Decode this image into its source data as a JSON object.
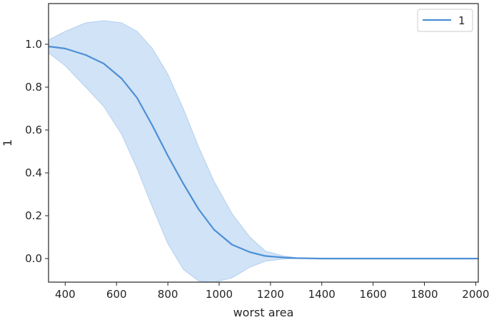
{
  "chart_data": {
    "type": "line",
    "xlabel": "worst area",
    "ylabel": "1",
    "xlim": [
      335,
      2010
    ],
    "ylim": [
      -0.11,
      1.19
    ],
    "xticks": [
      400,
      600,
      800,
      1000,
      1200,
      1400,
      1600,
      1800,
      2000
    ],
    "yticks": [
      0.0,
      0.2,
      0.4,
      0.6,
      0.8,
      1.0
    ],
    "ytick_labels": [
      "0.0",
      "0.2",
      "0.4",
      "0.6",
      "0.8",
      "1.0"
    ],
    "grid": false,
    "legend": {
      "placement": "top-right",
      "entries": [
        "1"
      ]
    },
    "colors": {
      "line": "#4c8fd6",
      "band": "#c9def4",
      "band_edge": "#b4d0ee",
      "axes": "#262626"
    },
    "series": [
      {
        "name": "1",
        "x": [
          335,
          400,
          480,
          550,
          620,
          680,
          740,
          800,
          860,
          920,
          980,
          1050,
          1120,
          1180,
          1250,
          1300,
          1400,
          1600,
          1800,
          2010
        ],
        "y": [
          0.99,
          0.98,
          0.95,
          0.91,
          0.84,
          0.75,
          0.62,
          0.48,
          0.35,
          0.23,
          0.135,
          0.065,
          0.03,
          0.012,
          0.005,
          0.002,
          0.0,
          0.0,
          0.0,
          0.0
        ],
        "lower": [
          0.96,
          0.9,
          0.8,
          0.71,
          0.58,
          0.42,
          0.24,
          0.07,
          -0.05,
          -0.105,
          -0.11,
          -0.09,
          -0.04,
          -0.012,
          -0.002,
          0.0,
          0.0,
          0.0,
          0.0,
          0.0
        ],
        "upper": [
          1.02,
          1.06,
          1.1,
          1.11,
          1.1,
          1.06,
          0.98,
          0.86,
          0.7,
          0.52,
          0.36,
          0.21,
          0.1,
          0.035,
          0.012,
          0.004,
          0.0,
          0.0,
          0.0,
          0.0
        ]
      }
    ]
  }
}
